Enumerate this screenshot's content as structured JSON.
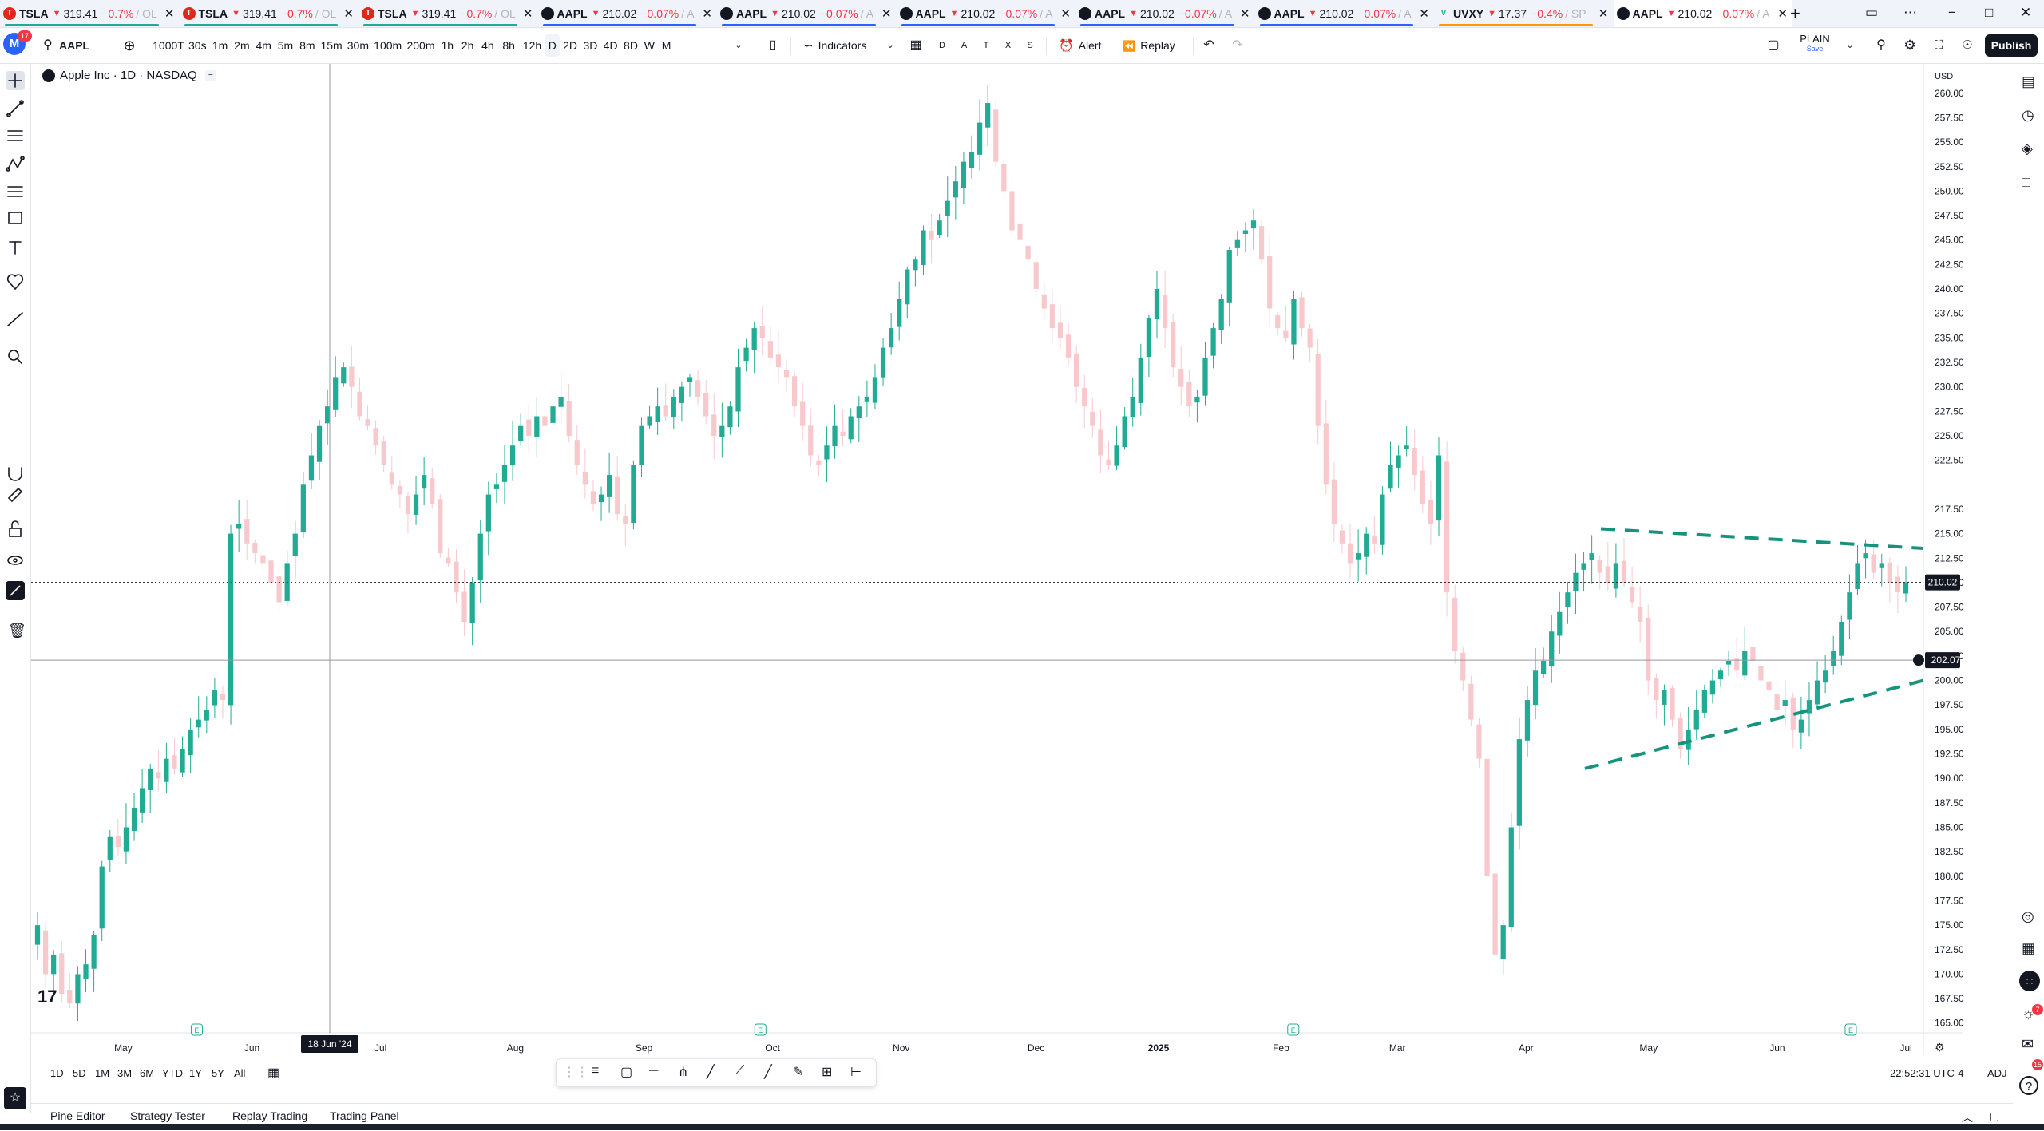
{
  "tabs": [
    {
      "icon": "T",
      "symbol": "TSLA",
      "price": "319.41",
      "change": "−0.7%",
      "suffix": "/ OL",
      "underline": "#22ab94"
    },
    {
      "icon": "T",
      "symbol": "TSLA",
      "price": "319.41",
      "change": "−0.7%",
      "suffix": "/ OL",
      "underline": "#22ab94"
    },
    {
      "icon": "T",
      "symbol": "TSLA",
      "price": "319.41",
      "change": "−0.7%",
      "suffix": "/ OL",
      "underline": "#22ab94"
    },
    {
      "icon": "",
      "symbol": "AAPL",
      "price": "210.02",
      "change": "−0.07%",
      "suffix": "/ A",
      "underline": "#2962ff"
    },
    {
      "icon": "",
      "symbol": "AAPL",
      "price": "210.02",
      "change": "−0.07%",
      "suffix": "/ A",
      "underline": "#2962ff"
    },
    {
      "icon": "",
      "symbol": "AAPL",
      "price": "210.02",
      "change": "−0.07%",
      "suffix": "/ A",
      "underline": "#2962ff"
    },
    {
      "icon": "",
      "symbol": "AAPL",
      "price": "210.02",
      "change": "−0.07%",
      "suffix": "/ A",
      "underline": "#2962ff"
    },
    {
      "icon": "",
      "symbol": "AAPL",
      "price": "210.02",
      "change": "−0.07%",
      "suffix": "/ A",
      "underline": "#2962ff"
    },
    {
      "icon": "V",
      "symbol": "UVXY",
      "price": "17.37",
      "change": "−0.4%",
      "suffix": "/ SP",
      "underline": "#ff9800"
    },
    {
      "icon": "",
      "symbol": "AAPL",
      "price": "210.02",
      "change": "−0.07%",
      "suffix": "/ A",
      "underline": ""
    }
  ],
  "profile_badge": "17",
  "toolbar": {
    "symbol": "AAPL",
    "intervals": [
      "1000T",
      "30s",
      "1m",
      "2m",
      "4m",
      "5m",
      "8m",
      "15m",
      "30m",
      "100m",
      "200m",
      "1h",
      "2h",
      "4h",
      "8h",
      "12h",
      "D",
      "2D",
      "3D",
      "4D",
      "8D",
      "W",
      "M"
    ],
    "selected_interval": "D",
    "indicators_label": "Indicators",
    "layout_letters": [
      "D",
      "A",
      "T",
      "X",
      "S"
    ],
    "alert_label": "Alert",
    "replay_label": "Replay",
    "layout_name": "PLAIN",
    "layout_sub": "Save",
    "publish_label": "Publish"
  },
  "legend": {
    "title": "Apple Inc · 1D · NASDAQ"
  },
  "currency": "USD",
  "crosshair": {
    "date_label": "18 Jun '24",
    "price_label": "202.07"
  },
  "last_price_label": "210.02",
  "time_display": "22:52:31 UTC-4",
  "adj_label": "ADJ",
  "ranges": [
    "1D",
    "5D",
    "1M",
    "3M",
    "6M",
    "YTD",
    "1Y",
    "5Y",
    "All"
  ],
  "panels": [
    "Pine Editor",
    "Strategy Tester",
    "Replay Trading",
    "Trading Panel"
  ],
  "notif_badge_1": "7",
  "notif_badge_2": "15",
  "colors": {
    "up": "#22ab94",
    "down": "#f7c9cd",
    "upWick": "#22ab94",
    "trend": "#17937d",
    "accent": "#2962ff"
  },
  "chart_data": {
    "type": "candlestick",
    "symbol": "AAPL",
    "interval": "1D",
    "currency": "USD",
    "ylim": [
      164,
      263
    ],
    "y_ticks": [
      165,
      167.5,
      170,
      172.5,
      175,
      177.5,
      180,
      182.5,
      185,
      187.5,
      190,
      192.5,
      195,
      197.5,
      200,
      202.5,
      205,
      207.5,
      210,
      212.5,
      215,
      217.5,
      222.5,
      225,
      227.5,
      230,
      232.5,
      235,
      237.5,
      240,
      242.5,
      245,
      247.5,
      250,
      252.5,
      255,
      257.5,
      260
    ],
    "x_ticks": [
      "May",
      "Jun",
      "Jul",
      "Aug",
      "Sep",
      "Oct",
      "Nov",
      "Dec",
      "2025",
      "Feb",
      "Mar",
      "Apr",
      "May",
      "Jun",
      "Jul"
    ],
    "last_price": 210.02,
    "series_closes": [
      175,
      170,
      172,
      168,
      167,
      170,
      171,
      174,
      181,
      184,
      183,
      185,
      187,
      189,
      191,
      190,
      192,
      191,
      193,
      195,
      196,
      197,
      199,
      198,
      215,
      216,
      214,
      213,
      212,
      210,
      208,
      212,
      215,
      220,
      223,
      226,
      228,
      231,
      232,
      230,
      227,
      226,
      224,
      222,
      220,
      219,
      217,
      219,
      221,
      218,
      213,
      212,
      209,
      206,
      210,
      215,
      219,
      220,
      222,
      224,
      226,
      225,
      227,
      226,
      228,
      229,
      225,
      222,
      220,
      218,
      219,
      221,
      217,
      216,
      222,
      226,
      227,
      228,
      227,
      229,
      230,
      231,
      229,
      227,
      225,
      226,
      228,
      232,
      234,
      236,
      235,
      233,
      232,
      231,
      228,
      226,
      223,
      222,
      224,
      226,
      225,
      227,
      228,
      229,
      231,
      234,
      236,
      239,
      242,
      243,
      246,
      245,
      247,
      249,
      251,
      253,
      254,
      257,
      259,
      253,
      250,
      246,
      245,
      243,
      240,
      238,
      236,
      235,
      233,
      230,
      228,
      226,
      223,
      222,
      224,
      227,
      229,
      233,
      237,
      240,
      236,
      232,
      230,
      228,
      229,
      233,
      236,
      239,
      244,
      245,
      246,
      247,
      243,
      238,
      236,
      235,
      239,
      236,
      234,
      226,
      220,
      216,
      214,
      212,
      213,
      215,
      214,
      219,
      222,
      223,
      224,
      221,
      218,
      216,
      223,
      209,
      203,
      200,
      196,
      192,
      180,
      172,
      175,
      185,
      194,
      198,
      201,
      202,
      205,
      207,
      209,
      211,
      212,
      213,
      211,
      210,
      212,
      210,
      208,
      206,
      200,
      198,
      199,
      196,
      193,
      195,
      197,
      199,
      200,
      201,
      202,
      201,
      203,
      202,
      200,
      199,
      197,
      198,
      195,
      196,
      198,
      200,
      201,
      203,
      206,
      209,
      212,
      213,
      211,
      212,
      210,
      209,
      210
    ],
    "trendlines": [
      {
        "name": "",
        "from": [
          "Apr 2025",
          215.5
        ],
        "to": [
          "Jul 2025",
          213.5
        ]
      },
      {
        "name": "",
        "from": [
          "May 2025",
          191
        ],
        "to": [
          "Jul 2025",
          200
        ]
      }
    ]
  }
}
